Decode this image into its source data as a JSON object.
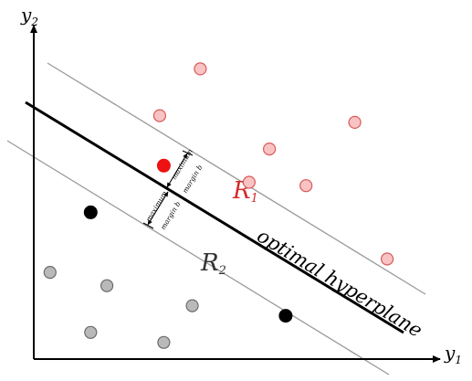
{
  "axes": {
    "x_label": "y",
    "x_subscript": "1",
    "y_label": "y",
    "y_subscript": "2"
  },
  "hyperplane": {
    "label": "optimal hyperplane"
  },
  "regions": {
    "r1": {
      "letter": "R",
      "subscript": "1",
      "color": "#d42a2a"
    },
    "r2": {
      "letter": "R",
      "subscript": "2",
      "color": "#333333"
    }
  },
  "margin_labels": {
    "upper": {
      "line1": "maximum",
      "line2": "margin b"
    },
    "lower": {
      "line1": "maximum",
      "line2": "margin b"
    }
  },
  "colors": {
    "class1_fill": "#f9c3c3",
    "class1_stroke": "#d85a5a",
    "class1_support": "#ee1111",
    "class2_fill": "#b9b9b9",
    "class2_stroke": "#6a6a6a",
    "class2_support": "#000000"
  },
  "points": {
    "class1": [
      {
        "x": 0.41,
        "y": 0.87
      },
      {
        "x": 0.31,
        "y": 0.73
      },
      {
        "x": 0.79,
        "y": 0.71
      },
      {
        "x": 0.58,
        "y": 0.63
      },
      {
        "x": 0.53,
        "y": 0.53
      },
      {
        "x": 0.67,
        "y": 0.52
      },
      {
        "x": 0.87,
        "y": 0.3
      }
    ],
    "class1_support": [
      {
        "x": 0.32,
        "y": 0.58
      }
    ],
    "class2": [
      {
        "x": 0.04,
        "y": 0.26
      },
      {
        "x": 0.18,
        "y": 0.22
      },
      {
        "x": 0.39,
        "y": 0.16
      },
      {
        "x": 0.14,
        "y": 0.08
      },
      {
        "x": 0.32,
        "y": 0.05
      }
    ],
    "class2_support": [
      {
        "x": 0.14,
        "y": 0.44
      },
      {
        "x": 0.62,
        "y": 0.13
      }
    ]
  }
}
